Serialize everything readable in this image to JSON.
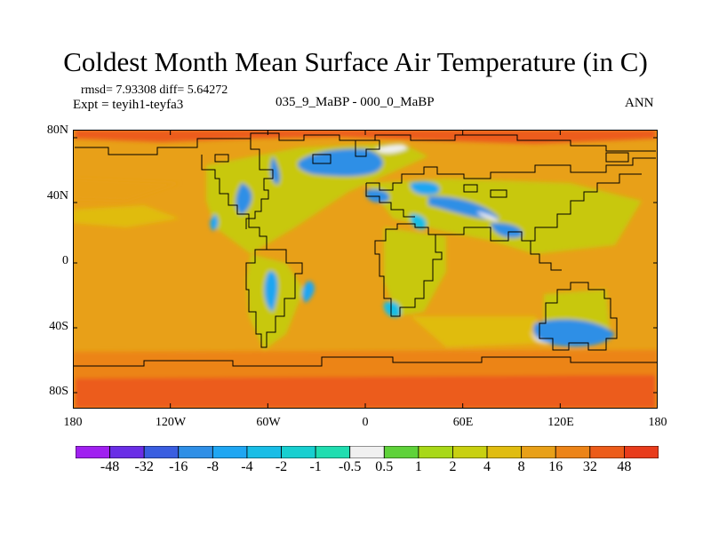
{
  "title": "Coldest Month Mean Surface Air Temperature (in C)",
  "stats": "rmsd= 7.93308 diff= 5.64272",
  "experiment": "Expt = teyih1-teyfa3",
  "period": "035_9_MaBP - 000_0_MaBP",
  "season": "ANN",
  "lat_labels": [
    "80N",
    "40N",
    "0",
    "40S",
    "80S"
  ],
  "lon_labels": [
    "180",
    "120W",
    "60W",
    "0",
    "60E",
    "120E",
    "180"
  ],
  "colorbar": {
    "labels": [
      "-48",
      "-32",
      "-16",
      "-8",
      "-4",
      "-2",
      "-1",
      "-0.5",
      "0.5",
      "1",
      "2",
      "4",
      "8",
      "16",
      "32",
      "48"
    ],
    "colors": [
      "#a020f0",
      "#6a2ee6",
      "#3a5ee0",
      "#2f8fe6",
      "#1fa6f2",
      "#19bde6",
      "#18cfd0",
      "#20ddb0",
      "#f0f0f0",
      "#5fd23a",
      "#a8d818",
      "#c8d010",
      "#e0bc10",
      "#e8a018",
      "#ec8418",
      "#ec5c1a",
      "#e83c1c"
    ]
  },
  "map_colors": {
    "ocean_base": "#e8a018",
    "land_warm": "#c8c810",
    "cold_anomaly": "#2f8fe6",
    "near_zero": "#f0f0f0",
    "polar_strong": "#ec5c1a",
    "coastline": "#000000"
  }
}
